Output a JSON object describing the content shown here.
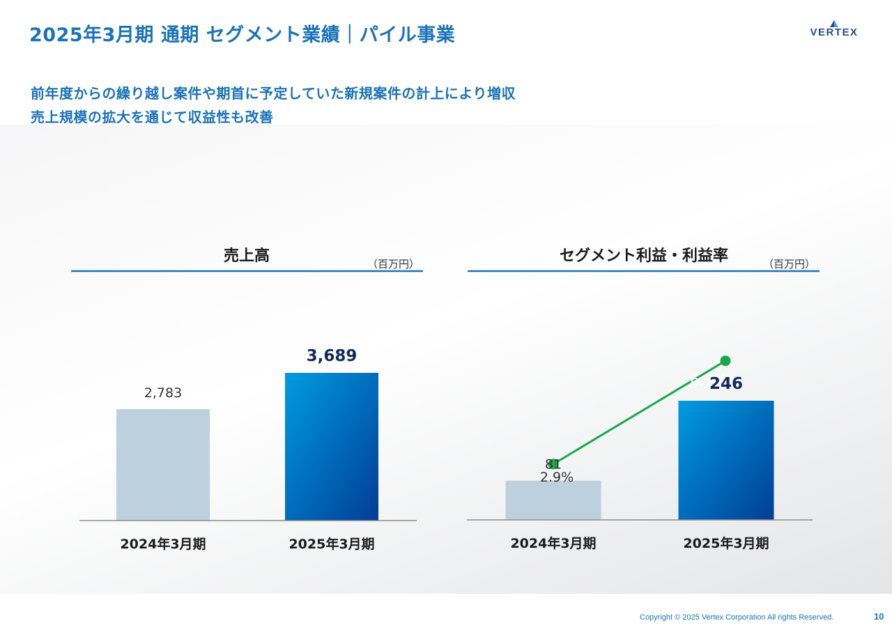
{
  "page": {
    "title": "2025年3月期 通期 セグメント業績｜パイル事業",
    "logo_text": "VERTEX",
    "subtitle_lines": [
      "前年度からの繰り越し案件や期首に予定していた新規案件の計上により増収",
      "売上規模の拡大を通じて収益性も改善"
    ],
    "footer": "Copyright © 2025 Vertex Corporation All rights Reserved.",
    "page_number": "10"
  },
  "colors": {
    "title": "#1a72b8",
    "bar_prev": "#bdd0de",
    "bar_curr_top": "#009be0",
    "bar_curr_bottom": "#003e96",
    "value_bold": "#0f2a5a",
    "margin_line": "#17a84a"
  },
  "chart_data": [
    {
      "type": "bar",
      "title": "売上高",
      "unit": "（百万円）",
      "categories": [
        "2024年3月期",
        "2025年3月期"
      ],
      "values": [
        2783,
        3689
      ],
      "value_labels": [
        "2,783",
        "3,689"
      ]
    },
    {
      "type": "bar",
      "title": "セグメント利益・利益率",
      "unit": "（百万円）",
      "categories": [
        "2024年3月期",
        "2025年3月期"
      ],
      "values": [
        81,
        246
      ],
      "value_labels": [
        "81",
        "246"
      ],
      "line_series": {
        "type": "line",
        "values": [
          2.9,
          6.7
        ],
        "value_labels": [
          "2.9%",
          "6.7%"
        ]
      }
    }
  ]
}
